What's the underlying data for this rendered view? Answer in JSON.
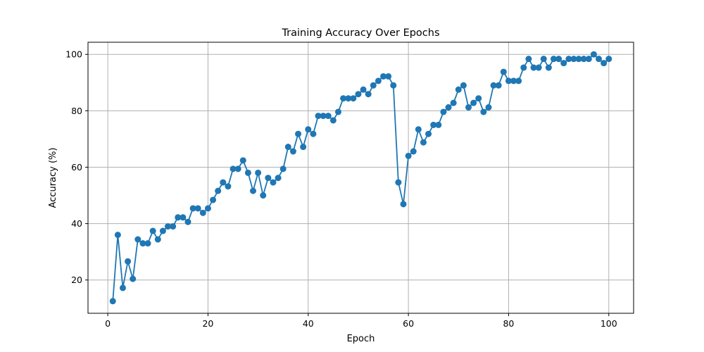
{
  "chart_data": {
    "type": "line",
    "title": "Training Accuracy Over Epochs",
    "xlabel": "Epoch",
    "ylabel": "Accuracy (%)",
    "xlim": [
      -3.95,
      104.95
    ],
    "ylim": [
      8.2,
      104.3
    ],
    "xticks": [
      0,
      20,
      40,
      60,
      80,
      100
    ],
    "yticks": [
      20,
      40,
      60,
      80,
      100
    ],
    "grid": true,
    "marker": "circle",
    "color": "#1f77b4",
    "series": [
      {
        "x": [
          1,
          2,
          3,
          4,
          5,
          6,
          7,
          8,
          9,
          10,
          11,
          12,
          13,
          14,
          15,
          16,
          17,
          18,
          19,
          20,
          21,
          22,
          23,
          24,
          25,
          26,
          27,
          28,
          29,
          30,
          31,
          32,
          33,
          34,
          35,
          36,
          37,
          38,
          39,
          40,
          41,
          42,
          43,
          44,
          45,
          46,
          47,
          48,
          49,
          50,
          51,
          52,
          53,
          54,
          55,
          56,
          57,
          58,
          59,
          60,
          61,
          62,
          63,
          64,
          65,
          66,
          67,
          68,
          69,
          70,
          71,
          72,
          73,
          74,
          75,
          76,
          77,
          78,
          79,
          80,
          81,
          82,
          83,
          84,
          85,
          86,
          87,
          88,
          89,
          90,
          91,
          92,
          93,
          94,
          95,
          96,
          97,
          98,
          99,
          100
        ],
        "values": [
          12.5,
          36,
          17.2,
          26.6,
          20.4,
          34.4,
          33,
          33,
          37.4,
          34.4,
          37.4,
          39,
          39,
          42.2,
          42.2,
          40.6,
          45.4,
          45.4,
          43.8,
          45.4,
          48.4,
          51.6,
          54.6,
          53.2,
          59.4,
          59.4,
          62.4,
          58,
          51.6,
          58,
          50,
          56.2,
          54.6,
          56.2,
          59.4,
          67.2,
          65.6,
          71.8,
          67.2,
          73.4,
          71.8,
          78.2,
          78.2,
          78.2,
          76.6,
          79.6,
          84.4,
          84.4,
          84.4,
          85.9,
          87.5,
          85.9,
          89,
          90.6,
          92.2,
          92.2,
          89,
          54.6,
          46.9,
          64,
          65.6,
          73.4,
          68.8,
          71.8,
          75,
          75,
          79.6,
          81.2,
          82.8,
          87.5,
          89,
          81.2,
          82.8,
          84.4,
          79.6,
          81.2,
          89,
          89,
          93.8,
          90.6,
          90.6,
          90.6,
          95.3,
          98.4,
          95.3,
          95.3,
          98.4,
          95.3,
          98.4,
          98.4,
          96.9,
          98.4,
          98.4,
          98.4,
          98.4,
          98.4,
          100,
          98.4,
          96.9,
          98.4
        ]
      }
    ]
  }
}
